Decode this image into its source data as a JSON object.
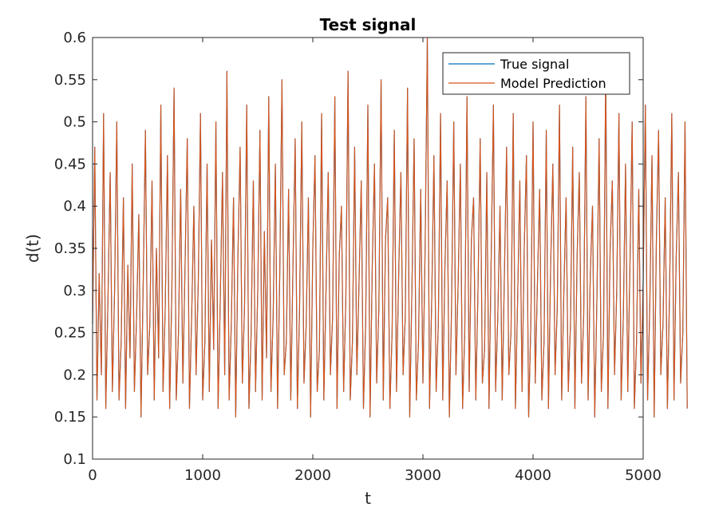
{
  "chart_data": {
    "type": "line",
    "title": "Test signal",
    "xlabel": "t",
    "ylabel": "d(t)",
    "xlim": [
      0,
      5000
    ],
    "ylim": [
      0.1,
      0.6
    ],
    "x_ticks": [
      0,
      1000,
      2000,
      3000,
      4000,
      5000
    ],
    "x_tick_labels": [
      "0",
      "1000",
      "2000",
      "3000",
      "4000",
      "5000"
    ],
    "y_ticks": [
      0.1,
      0.15,
      0.2,
      0.25,
      0.3,
      0.35,
      0.4,
      0.45,
      0.5,
      0.55,
      0.6
    ],
    "y_tick_labels": [
      "0.1",
      "0.15",
      "0.2",
      "0.25",
      "0.3",
      "0.35",
      "0.4",
      "0.45",
      "0.5",
      "0.55",
      "0.6"
    ],
    "grid": false,
    "legend_position": "top-right",
    "x_step": 20,
    "series": [
      {
        "name": "True signal",
        "color": "#0072BD",
        "values": [
          0.26,
          0.47,
          0.17,
          0.32,
          0.2,
          0.51,
          0.16,
          0.29,
          0.44,
          0.18,
          0.3,
          0.5,
          0.17,
          0.24,
          0.41,
          0.16,
          0.33,
          0.22,
          0.45,
          0.18,
          0.27,
          0.39,
          0.15,
          0.31,
          0.49,
          0.2,
          0.26,
          0.43,
          0.17,
          0.35,
          0.22,
          0.52,
          0.18,
          0.28,
          0.46,
          0.16,
          0.3,
          0.54,
          0.17,
          0.25,
          0.42,
          0.19,
          0.33,
          0.48,
          0.16,
          0.27,
          0.4,
          0.2,
          0.31,
          0.51,
          0.17,
          0.24,
          0.45,
          0.18,
          0.36,
          0.23,
          0.5,
          0.16,
          0.29,
          0.44,
          0.2,
          0.56,
          0.17,
          0.26,
          0.41,
          0.15,
          0.34,
          0.47,
          0.19,
          0.28,
          0.52,
          0.16,
          0.25,
          0.43,
          0.18,
          0.3,
          0.49,
          0.17,
          0.37,
          0.22,
          0.53,
          0.18,
          0.27,
          0.45,
          0.16,
          0.32,
          0.55,
          0.2,
          0.24,
          0.42,
          0.17,
          0.33,
          0.48,
          0.16,
          0.28,
          0.5,
          0.19,
          0.26,
          0.41,
          0.15,
          0.35,
          0.46,
          0.18,
          0.23,
          0.51,
          0.17,
          0.3,
          0.44,
          0.2,
          0.27,
          0.53,
          0.16,
          0.34,
          0.4,
          0.18,
          0.29,
          0.56,
          0.17,
          0.24,
          0.47,
          0.2,
          0.31,
          0.43,
          0.16,
          0.26,
          0.52,
          0.15,
          0.33,
          0.45,
          0.19,
          0.28,
          0.55,
          0.17,
          0.36,
          0.41,
          0.16,
          0.25,
          0.49,
          0.18,
          0.32,
          0.44,
          0.2,
          0.27,
          0.54,
          0.15,
          0.3,
          0.48,
          0.17,
          0.24,
          0.42,
          0.19,
          0.35,
          0.6,
          0.16,
          0.29,
          0.46,
          0.18,
          0.26,
          0.51,
          0.17,
          0.33,
          0.43,
          0.15,
          0.28,
          0.5,
          0.2,
          0.31,
          0.45,
          0.16,
          0.25,
          0.53,
          0.18,
          0.36,
          0.41,
          0.17,
          0.3,
          0.48,
          0.19,
          0.23,
          0.44,
          0.16,
          0.34,
          0.52,
          0.18,
          0.27,
          0.4,
          0.17,
          0.32,
          0.47,
          0.2,
          0.25,
          0.51,
          0.16,
          0.29,
          0.43,
          0.18,
          0.35,
          0.46,
          0.15,
          0.26,
          0.5,
          0.19,
          0.31,
          0.42,
          0.17,
          0.24,
          0.49,
          0.16,
          0.33,
          0.45,
          0.2,
          0.28,
          0.52,
          0.17,
          0.3,
          0.41,
          0.18,
          0.26,
          0.47,
          0.16,
          0.34,
          0.44,
          0.19,
          0.27,
          0.53,
          0.17,
          0.32,
          0.4,
          0.15,
          0.29,
          0.48,
          0.18,
          0.25,
          0.56,
          0.16,
          0.35,
          0.43,
          0.2,
          0.3,
          0.51,
          0.17,
          0.27,
          0.45,
          0.18,
          0.33,
          0.5,
          0.16,
          0.24,
          0.42,
          0.19,
          0.31,
          0.52,
          0.17,
          0.28,
          0.46,
          0.15,
          0.36,
          0.49,
          0.2,
          0.26,
          0.41,
          0.16,
          0.3,
          0.51,
          0.17,
          0.34,
          0.44,
          0.19,
          0.25,
          0.5,
          0.16
        ]
      },
      {
        "name": "Model Prediction",
        "color": "#D95319",
        "values": [
          0.26,
          0.47,
          0.17,
          0.32,
          0.2,
          0.51,
          0.16,
          0.29,
          0.44,
          0.18,
          0.3,
          0.5,
          0.17,
          0.24,
          0.41,
          0.16,
          0.33,
          0.22,
          0.45,
          0.18,
          0.27,
          0.39,
          0.15,
          0.31,
          0.49,
          0.2,
          0.26,
          0.43,
          0.17,
          0.35,
          0.22,
          0.52,
          0.18,
          0.28,
          0.46,
          0.16,
          0.3,
          0.54,
          0.17,
          0.25,
          0.42,
          0.19,
          0.33,
          0.48,
          0.16,
          0.27,
          0.4,
          0.2,
          0.31,
          0.51,
          0.17,
          0.24,
          0.45,
          0.18,
          0.36,
          0.23,
          0.5,
          0.16,
          0.29,
          0.44,
          0.2,
          0.56,
          0.17,
          0.26,
          0.41,
          0.15,
          0.34,
          0.47,
          0.19,
          0.28,
          0.52,
          0.16,
          0.25,
          0.43,
          0.18,
          0.3,
          0.49,
          0.17,
          0.37,
          0.22,
          0.53,
          0.18,
          0.27,
          0.45,
          0.16,
          0.32,
          0.55,
          0.2,
          0.24,
          0.42,
          0.17,
          0.33,
          0.48,
          0.16,
          0.28,
          0.5,
          0.19,
          0.26,
          0.41,
          0.15,
          0.35,
          0.46,
          0.18,
          0.23,
          0.51,
          0.17,
          0.3,
          0.44,
          0.2,
          0.27,
          0.53,
          0.16,
          0.34,
          0.4,
          0.18,
          0.29,
          0.56,
          0.17,
          0.24,
          0.47,
          0.2,
          0.31,
          0.43,
          0.16,
          0.26,
          0.52,
          0.15,
          0.33,
          0.45,
          0.19,
          0.28,
          0.55,
          0.17,
          0.36,
          0.41,
          0.16,
          0.25,
          0.49,
          0.18,
          0.32,
          0.44,
          0.2,
          0.27,
          0.54,
          0.15,
          0.3,
          0.48,
          0.17,
          0.24,
          0.42,
          0.19,
          0.35,
          0.6,
          0.16,
          0.29,
          0.46,
          0.18,
          0.26,
          0.51,
          0.17,
          0.33,
          0.43,
          0.15,
          0.28,
          0.5,
          0.2,
          0.31,
          0.45,
          0.16,
          0.25,
          0.53,
          0.18,
          0.36,
          0.41,
          0.17,
          0.3,
          0.48,
          0.19,
          0.23,
          0.44,
          0.16,
          0.34,
          0.52,
          0.18,
          0.27,
          0.4,
          0.17,
          0.32,
          0.47,
          0.2,
          0.25,
          0.51,
          0.16,
          0.29,
          0.43,
          0.18,
          0.35,
          0.46,
          0.15,
          0.26,
          0.5,
          0.19,
          0.31,
          0.42,
          0.17,
          0.24,
          0.49,
          0.16,
          0.33,
          0.45,
          0.2,
          0.28,
          0.52,
          0.17,
          0.3,
          0.41,
          0.18,
          0.26,
          0.47,
          0.16,
          0.34,
          0.44,
          0.19,
          0.27,
          0.53,
          0.17,
          0.32,
          0.4,
          0.15,
          0.29,
          0.48,
          0.18,
          0.25,
          0.56,
          0.16,
          0.35,
          0.43,
          0.2,
          0.3,
          0.51,
          0.17,
          0.27,
          0.45,
          0.18,
          0.33,
          0.5,
          0.16,
          0.24,
          0.42,
          0.19,
          0.31,
          0.52,
          0.17,
          0.28,
          0.46,
          0.15,
          0.36,
          0.49,
          0.2,
          0.26,
          0.41,
          0.16,
          0.3,
          0.51,
          0.17,
          0.34,
          0.44,
          0.19,
          0.25,
          0.5,
          0.16
        ]
      }
    ]
  }
}
